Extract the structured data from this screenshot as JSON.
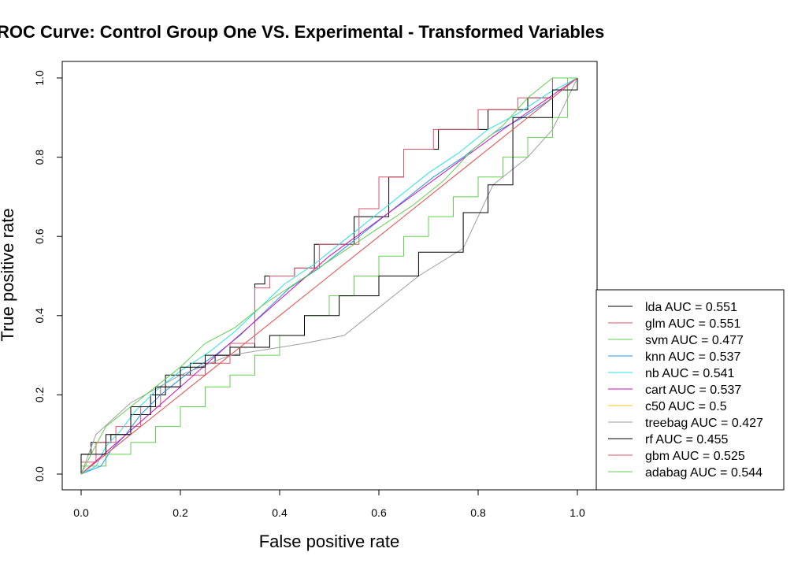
{
  "chart_data": {
    "type": "line",
    "title": "ROC Curve: Control Group One VS. Experimental - Transformed Variables",
    "xlabel": "False positive rate",
    "ylabel": "True positive rate",
    "xlim": [
      0,
      1
    ],
    "ylim": [
      0,
      1
    ],
    "x_ticks": [
      "0.0",
      "0.2",
      "0.4",
      "0.6",
      "0.8",
      "1.0"
    ],
    "y_ticks": [
      "0.0",
      "0.2",
      "0.4",
      "0.6",
      "0.8",
      "1.0"
    ],
    "grid": false,
    "legend_position": "bottom-right",
    "series": [
      {
        "name": "lda AUC = 0.551",
        "color": "#000000",
        "points": [
          [
            0,
            0
          ],
          [
            0,
            0.05
          ],
          [
            0.02,
            0.05
          ],
          [
            0.02,
            0.08
          ],
          [
            0.06,
            0.08
          ],
          [
            0.06,
            0.1
          ],
          [
            0.1,
            0.1
          ],
          [
            0.1,
            0.15
          ],
          [
            0.14,
            0.15
          ],
          [
            0.14,
            0.2
          ],
          [
            0.17,
            0.2
          ],
          [
            0.17,
            0.25
          ],
          [
            0.22,
            0.25
          ],
          [
            0.22,
            0.28
          ],
          [
            0.27,
            0.28
          ],
          [
            0.27,
            0.3
          ],
          [
            0.32,
            0.3
          ],
          [
            0.32,
            0.32
          ],
          [
            0.35,
            0.32
          ],
          [
            0.35,
            0.48
          ],
          [
            0.37,
            0.48
          ],
          [
            0.37,
            0.5
          ],
          [
            0.43,
            0.5
          ],
          [
            0.43,
            0.52
          ],
          [
            0.47,
            0.52
          ],
          [
            0.47,
            0.58
          ],
          [
            0.55,
            0.58
          ],
          [
            0.55,
            0.65
          ],
          [
            0.62,
            0.65
          ],
          [
            0.62,
            0.75
          ],
          [
            0.65,
            0.75
          ],
          [
            0.65,
            0.82
          ],
          [
            0.72,
            0.82
          ],
          [
            0.72,
            0.87
          ],
          [
            0.82,
            0.87
          ],
          [
            0.82,
            0.92
          ],
          [
            0.9,
            0.92
          ],
          [
            0.9,
            0.95
          ],
          [
            0.95,
            0.95
          ],
          [
            0.95,
            1
          ],
          [
            1,
            1
          ]
        ]
      },
      {
        "name": "glm AUC = 0.551",
        "color": "#df536b",
        "points": [
          [
            0,
            0
          ],
          [
            0,
            0.03
          ],
          [
            0.03,
            0.03
          ],
          [
            0.03,
            0.08
          ],
          [
            0.07,
            0.08
          ],
          [
            0.07,
            0.12
          ],
          [
            0.12,
            0.12
          ],
          [
            0.12,
            0.17
          ],
          [
            0.16,
            0.17
          ],
          [
            0.16,
            0.22
          ],
          [
            0.2,
            0.22
          ],
          [
            0.2,
            0.25
          ],
          [
            0.25,
            0.25
          ],
          [
            0.25,
            0.28
          ],
          [
            0.3,
            0.28
          ],
          [
            0.3,
            0.33
          ],
          [
            0.35,
            0.33
          ],
          [
            0.35,
            0.47
          ],
          [
            0.38,
            0.47
          ],
          [
            0.38,
            0.5
          ],
          [
            0.43,
            0.5
          ],
          [
            0.43,
            0.52
          ],
          [
            0.48,
            0.52
          ],
          [
            0.48,
            0.58
          ],
          [
            0.56,
            0.58
          ],
          [
            0.56,
            0.67
          ],
          [
            0.6,
            0.67
          ],
          [
            0.6,
            0.75
          ],
          [
            0.65,
            0.75
          ],
          [
            0.65,
            0.82
          ],
          [
            0.71,
            0.82
          ],
          [
            0.71,
            0.87
          ],
          [
            0.8,
            0.87
          ],
          [
            0.8,
            0.92
          ],
          [
            0.88,
            0.92
          ],
          [
            0.88,
            0.95
          ],
          [
            0.95,
            0.95
          ],
          [
            0.95,
            1
          ],
          [
            1,
            1
          ]
        ]
      },
      {
        "name": "svm AUC = 0.477",
        "color": "#61d04f",
        "points": [
          [
            0,
            0
          ],
          [
            0,
            0.02
          ],
          [
            0.05,
            0.02
          ],
          [
            0.05,
            0.05
          ],
          [
            0.1,
            0.05
          ],
          [
            0.1,
            0.08
          ],
          [
            0.15,
            0.08
          ],
          [
            0.15,
            0.12
          ],
          [
            0.2,
            0.12
          ],
          [
            0.2,
            0.17
          ],
          [
            0.25,
            0.17
          ],
          [
            0.25,
            0.22
          ],
          [
            0.3,
            0.22
          ],
          [
            0.3,
            0.25
          ],
          [
            0.35,
            0.25
          ],
          [
            0.35,
            0.3
          ],
          [
            0.4,
            0.3
          ],
          [
            0.4,
            0.35
          ],
          [
            0.45,
            0.35
          ],
          [
            0.45,
            0.4
          ],
          [
            0.5,
            0.4
          ],
          [
            0.5,
            0.45
          ],
          [
            0.55,
            0.45
          ],
          [
            0.55,
            0.5
          ],
          [
            0.6,
            0.5
          ],
          [
            0.6,
            0.55
          ],
          [
            0.65,
            0.55
          ],
          [
            0.65,
            0.6
          ],
          [
            0.7,
            0.6
          ],
          [
            0.7,
            0.65
          ],
          [
            0.75,
            0.65
          ],
          [
            0.75,
            0.7
          ],
          [
            0.8,
            0.7
          ],
          [
            0.8,
            0.75
          ],
          [
            0.85,
            0.75
          ],
          [
            0.85,
            0.8
          ],
          [
            0.9,
            0.8
          ],
          [
            0.9,
            0.85
          ],
          [
            0.95,
            0.85
          ],
          [
            0.95,
            0.9
          ],
          [
            0.98,
            0.9
          ],
          [
            0.98,
            1
          ],
          [
            1,
            1
          ]
        ]
      },
      {
        "name": "knn AUC = 0.537",
        "color": "#2297e6",
        "points": [
          [
            0,
            0
          ],
          [
            0.04,
            0.02
          ],
          [
            0.06,
            0.06
          ],
          [
            0.09,
            0.1
          ],
          [
            0.12,
            0.15
          ],
          [
            0.16,
            0.2
          ],
          [
            0.21,
            0.25
          ],
          [
            0.27,
            0.3
          ],
          [
            0.32,
            0.35
          ],
          [
            0.37,
            0.41
          ],
          [
            0.42,
            0.47
          ],
          [
            0.48,
            0.52
          ],
          [
            0.54,
            0.58
          ],
          [
            0.6,
            0.64
          ],
          [
            0.66,
            0.7
          ],
          [
            0.71,
            0.75
          ],
          [
            0.77,
            0.8
          ],
          [
            0.83,
            0.86
          ],
          [
            0.89,
            0.9
          ],
          [
            0.95,
            0.95
          ],
          [
            1,
            1
          ]
        ]
      },
      {
        "name": "nb AUC = 0.541",
        "color": "#28e2e5",
        "points": [
          [
            0,
            0
          ],
          [
            0.03,
            0.02
          ],
          [
            0.05,
            0.07
          ],
          [
            0.08,
            0.11
          ],
          [
            0.11,
            0.16
          ],
          [
            0.15,
            0.21
          ],
          [
            0.2,
            0.26
          ],
          [
            0.26,
            0.31
          ],
          [
            0.31,
            0.36
          ],
          [
            0.36,
            0.42
          ],
          [
            0.41,
            0.48
          ],
          [
            0.47,
            0.53
          ],
          [
            0.53,
            0.59
          ],
          [
            0.59,
            0.65
          ],
          [
            0.65,
            0.71
          ],
          [
            0.7,
            0.76
          ],
          [
            0.76,
            0.81
          ],
          [
            0.82,
            0.87
          ],
          [
            0.88,
            0.91
          ],
          [
            0.94,
            0.96
          ],
          [
            1,
            1
          ]
        ]
      },
      {
        "name": "cart AUC = 0.537",
        "color": "#cd0bbc",
        "points": [
          [
            0,
            0
          ],
          [
            0.5,
            0.55
          ],
          [
            0.85,
            0.87
          ],
          [
            1,
            1
          ]
        ]
      },
      {
        "name": "c50 AUC = 0.5",
        "color": "#f5c710",
        "points": [
          [
            0,
            0
          ],
          [
            1,
            1
          ]
        ]
      },
      {
        "name": "treebag AUC = 0.427",
        "color": "#9e9e9e",
        "points": [
          [
            0,
            0
          ],
          [
            0.03,
            0.1
          ],
          [
            0.1,
            0.18
          ],
          [
            0.2,
            0.25
          ],
          [
            0.3,
            0.3
          ],
          [
            0.45,
            0.33
          ],
          [
            0.53,
            0.35
          ],
          [
            0.6,
            0.42
          ],
          [
            0.68,
            0.5
          ],
          [
            0.77,
            0.57
          ],
          [
            0.83,
            0.73
          ],
          [
            0.9,
            0.8
          ],
          [
            0.95,
            0.87
          ],
          [
            1,
            1
          ]
        ]
      },
      {
        "name": "rf AUC = 0.455",
        "color": "#000000",
        "points": [
          [
            0,
            0
          ],
          [
            0,
            0.05
          ],
          [
            0.05,
            0.05
          ],
          [
            0.05,
            0.1
          ],
          [
            0.1,
            0.1
          ],
          [
            0.1,
            0.17
          ],
          [
            0.15,
            0.17
          ],
          [
            0.15,
            0.22
          ],
          [
            0.2,
            0.22
          ],
          [
            0.2,
            0.27
          ],
          [
            0.25,
            0.27
          ],
          [
            0.25,
            0.3
          ],
          [
            0.3,
            0.3
          ],
          [
            0.3,
            0.32
          ],
          [
            0.38,
            0.32
          ],
          [
            0.38,
            0.35
          ],
          [
            0.45,
            0.35
          ],
          [
            0.45,
            0.4
          ],
          [
            0.52,
            0.4
          ],
          [
            0.52,
            0.45
          ],
          [
            0.6,
            0.45
          ],
          [
            0.6,
            0.5
          ],
          [
            0.68,
            0.5
          ],
          [
            0.68,
            0.56
          ],
          [
            0.77,
            0.56
          ],
          [
            0.77,
            0.66
          ],
          [
            0.82,
            0.66
          ],
          [
            0.82,
            0.73
          ],
          [
            0.87,
            0.73
          ],
          [
            0.87,
            0.9
          ],
          [
            0.95,
            0.9
          ],
          [
            0.95,
            0.97
          ],
          [
            1,
            0.97
          ],
          [
            1,
            1
          ]
        ]
      },
      {
        "name": "gbm AUC = 0.525",
        "color": "#df536b",
        "points": [
          [
            0,
            0
          ],
          [
            0.04,
            0.04
          ],
          [
            0.08,
            0.08
          ],
          [
            0.12,
            0.12
          ],
          [
            0.17,
            0.17
          ],
          [
            0.22,
            0.22
          ],
          [
            0.28,
            0.28
          ],
          [
            0.34,
            0.34
          ],
          [
            0.4,
            0.4
          ],
          [
            0.46,
            0.46
          ],
          [
            0.52,
            0.52
          ],
          [
            0.58,
            0.58
          ],
          [
            0.64,
            0.64
          ],
          [
            0.7,
            0.7
          ],
          [
            0.76,
            0.76
          ],
          [
            0.82,
            0.82
          ],
          [
            0.88,
            0.88
          ],
          [
            0.94,
            0.94
          ],
          [
            1,
            1
          ]
        ]
      },
      {
        "name": "adabag AUC = 0.544",
        "color": "#61d04f",
        "points": [
          [
            0,
            0
          ],
          [
            0.02,
            0.05
          ],
          [
            0.05,
            0.12
          ],
          [
            0.1,
            0.17
          ],
          [
            0.15,
            0.22
          ],
          [
            0.2,
            0.27
          ],
          [
            0.25,
            0.33
          ],
          [
            0.31,
            0.37
          ],
          [
            0.37,
            0.43
          ],
          [
            0.43,
            0.48
          ],
          [
            0.49,
            0.53
          ],
          [
            0.55,
            0.58
          ],
          [
            0.61,
            0.63
          ],
          [
            0.67,
            0.68
          ],
          [
            0.73,
            0.74
          ],
          [
            0.79,
            0.82
          ],
          [
            0.85,
            0.88
          ],
          [
            0.9,
            0.95
          ],
          [
            0.95,
            1
          ],
          [
            1,
            1
          ]
        ]
      }
    ]
  }
}
